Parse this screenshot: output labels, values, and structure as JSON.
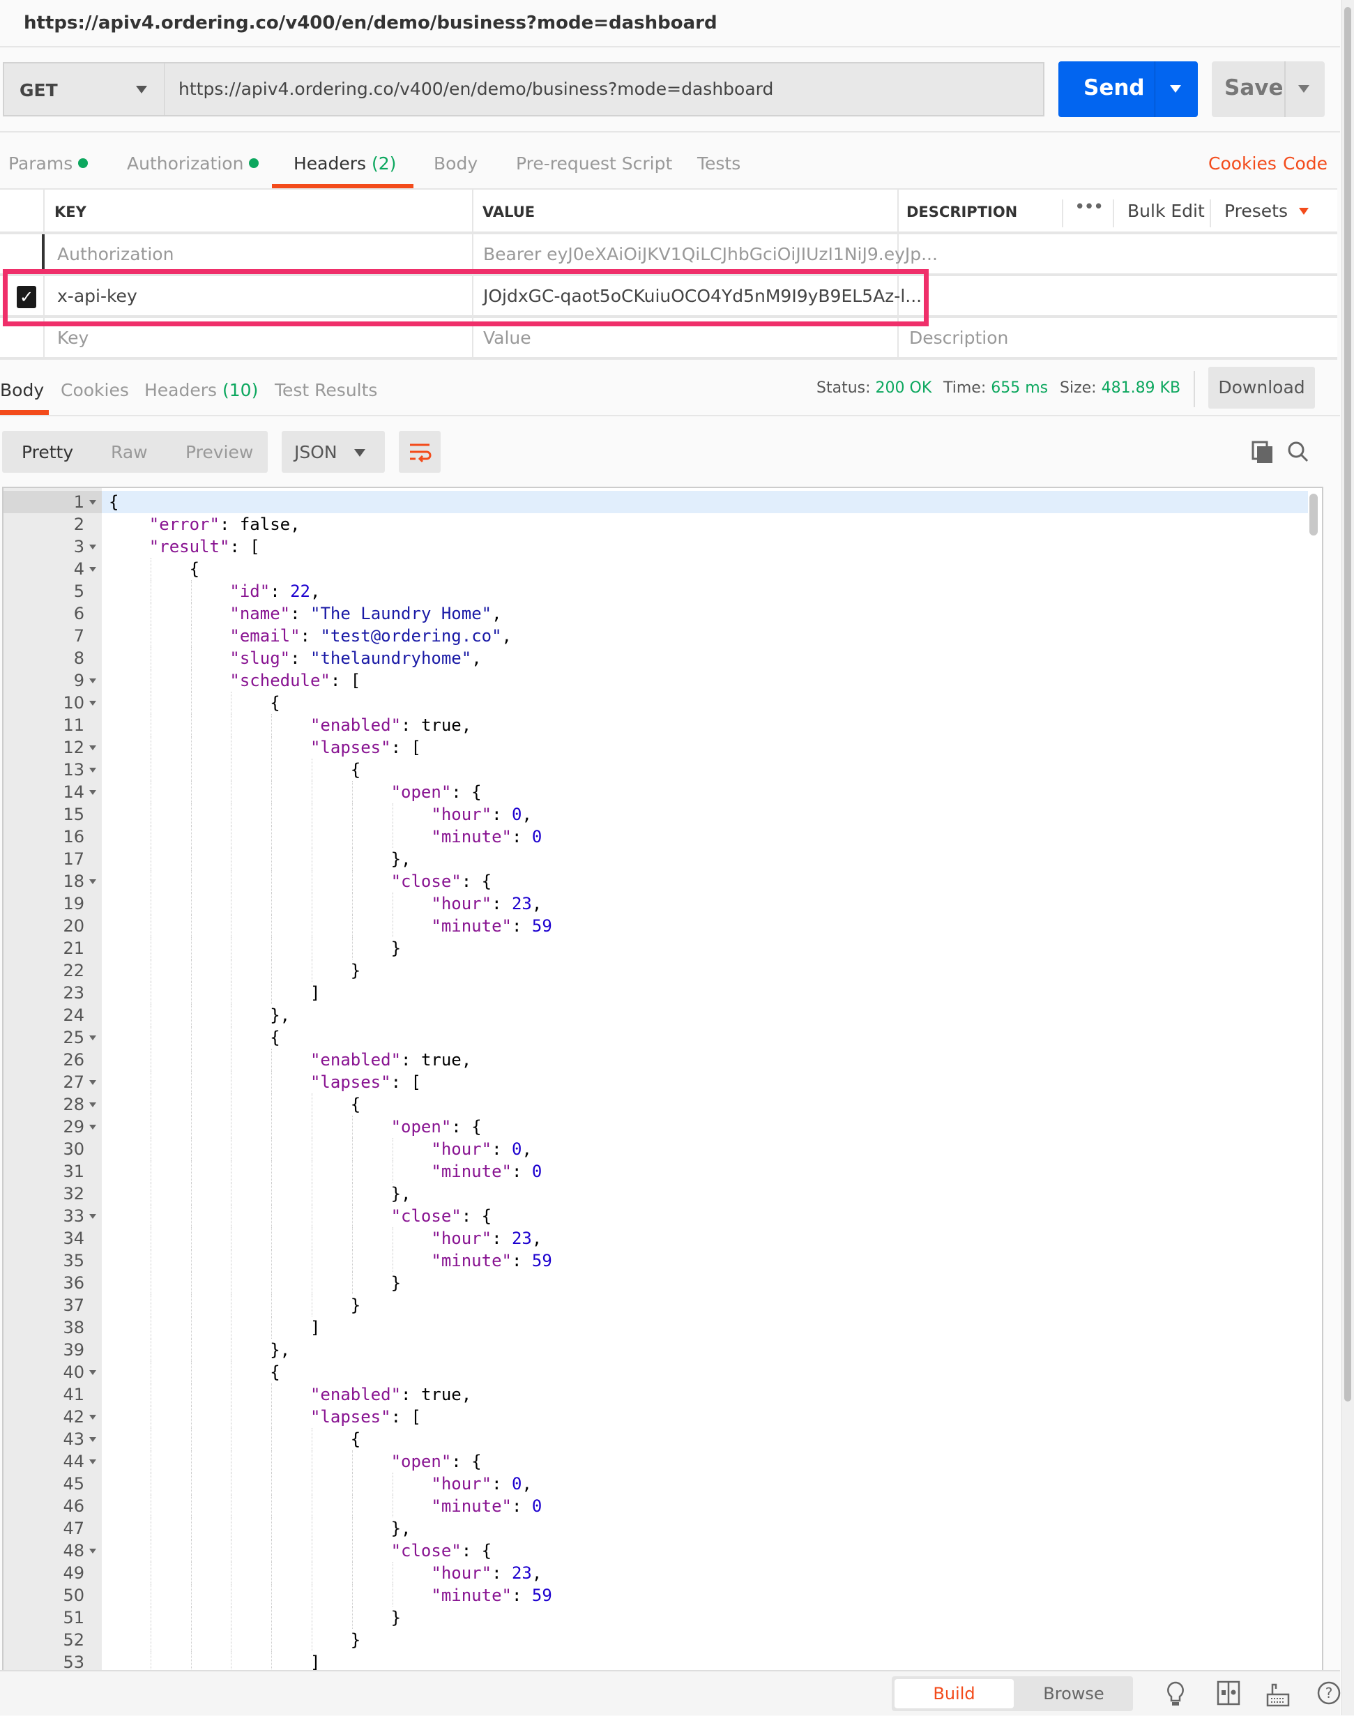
{
  "window_title": "https://apiv4.ordering.co/v400/en/demo/business?mode=dashboard",
  "request": {
    "method": "GET",
    "url": "https://apiv4.ordering.co/v400/en/demo/business?mode=dashboard",
    "send_label": "Send",
    "save_label": "Save"
  },
  "request_tabs": {
    "params": "Params",
    "authorization": "Authorization",
    "headers": "Headers",
    "headers_count": "(2)",
    "body": "Body",
    "prerequest": "Pre-request Script",
    "tests": "Tests",
    "cookies": "Cookies",
    "code": "Code",
    "active": "Headers"
  },
  "headers_table": {
    "columns": {
      "key": "KEY",
      "value": "VALUE",
      "description": "DESCRIPTION"
    },
    "more_icon": "•••",
    "bulk_edit": "Bulk Edit",
    "presets": "Presets",
    "rows": [
      {
        "key": "Authorization",
        "value": "Bearer eyJ0eXAiOiJKV1QiLCJhbGciOiJIUzI1NiJ9.eyJp...",
        "enabled": false
      },
      {
        "key": "x-api-key",
        "value": "JOjdxGC-qaot5oCKuiuOCO4Yd5nM9I9yB9EL5Az-l...",
        "enabled": true
      }
    ],
    "placeholder": {
      "key": "Key",
      "value": "Value",
      "description": "Description"
    },
    "highlight_color": "#ef2f6a"
  },
  "response_tabs": {
    "body": "Body",
    "cookies": "Cookies",
    "headers": "Headers",
    "headers_count": "(10)",
    "test_results": "Test Results"
  },
  "response_status": {
    "status_label": "Status:",
    "status": "200 OK",
    "time_label": "Time:",
    "time": "655 ms",
    "size_label": "Size:",
    "size": "481.89 KB",
    "download": "Download"
  },
  "view": {
    "pretty": "Pretty",
    "raw": "Raw",
    "preview": "Preview",
    "format": "JSON"
  },
  "code": {
    "fold_lines": [
      1,
      3,
      4,
      9,
      10,
      12,
      13,
      14,
      18,
      25,
      27,
      28,
      29,
      33,
      40,
      42,
      43,
      44,
      48
    ],
    "lines": [
      "{",
      "    \"error\": false,",
      "    \"result\": [",
      "        {",
      "            \"id\": 22,",
      "            \"name\": \"The Laundry Home\",",
      "            \"email\": \"test@ordering.co\",",
      "            \"slug\": \"thelaundryhome\",",
      "            \"schedule\": [",
      "                {",
      "                    \"enabled\": true,",
      "                    \"lapses\": [",
      "                        {",
      "                            \"open\": {",
      "                                \"hour\": 0,",
      "                                \"minute\": 0",
      "                            },",
      "                            \"close\": {",
      "                                \"hour\": 23,",
      "                                \"minute\": 59",
      "                            }",
      "                        }",
      "                    ]",
      "                },",
      "                {",
      "                    \"enabled\": true,",
      "                    \"lapses\": [",
      "                        {",
      "                            \"open\": {",
      "                                \"hour\": 0,",
      "                                \"minute\": 0",
      "                            },",
      "                            \"close\": {",
      "                                \"hour\": 23,",
      "                                \"minute\": 59",
      "                            }",
      "                        }",
      "                    ]",
      "                },",
      "                {",
      "                    \"enabled\": true,",
      "                    \"lapses\": [",
      "                        {",
      "                            \"open\": {",
      "                                \"hour\": 0,",
      "                                \"minute\": 0",
      "                            },",
      "                            \"close\": {",
      "                                \"hour\": 23,",
      "                                \"minute\": 59",
      "                            }",
      "                        }",
      "                    ]"
    ]
  },
  "footer": {
    "build": "Build",
    "browse": "Browse",
    "active": "Build"
  },
  "colors": {
    "accent": "#f34b1b",
    "send": "#0265f0",
    "success": "#0ca75e"
  }
}
